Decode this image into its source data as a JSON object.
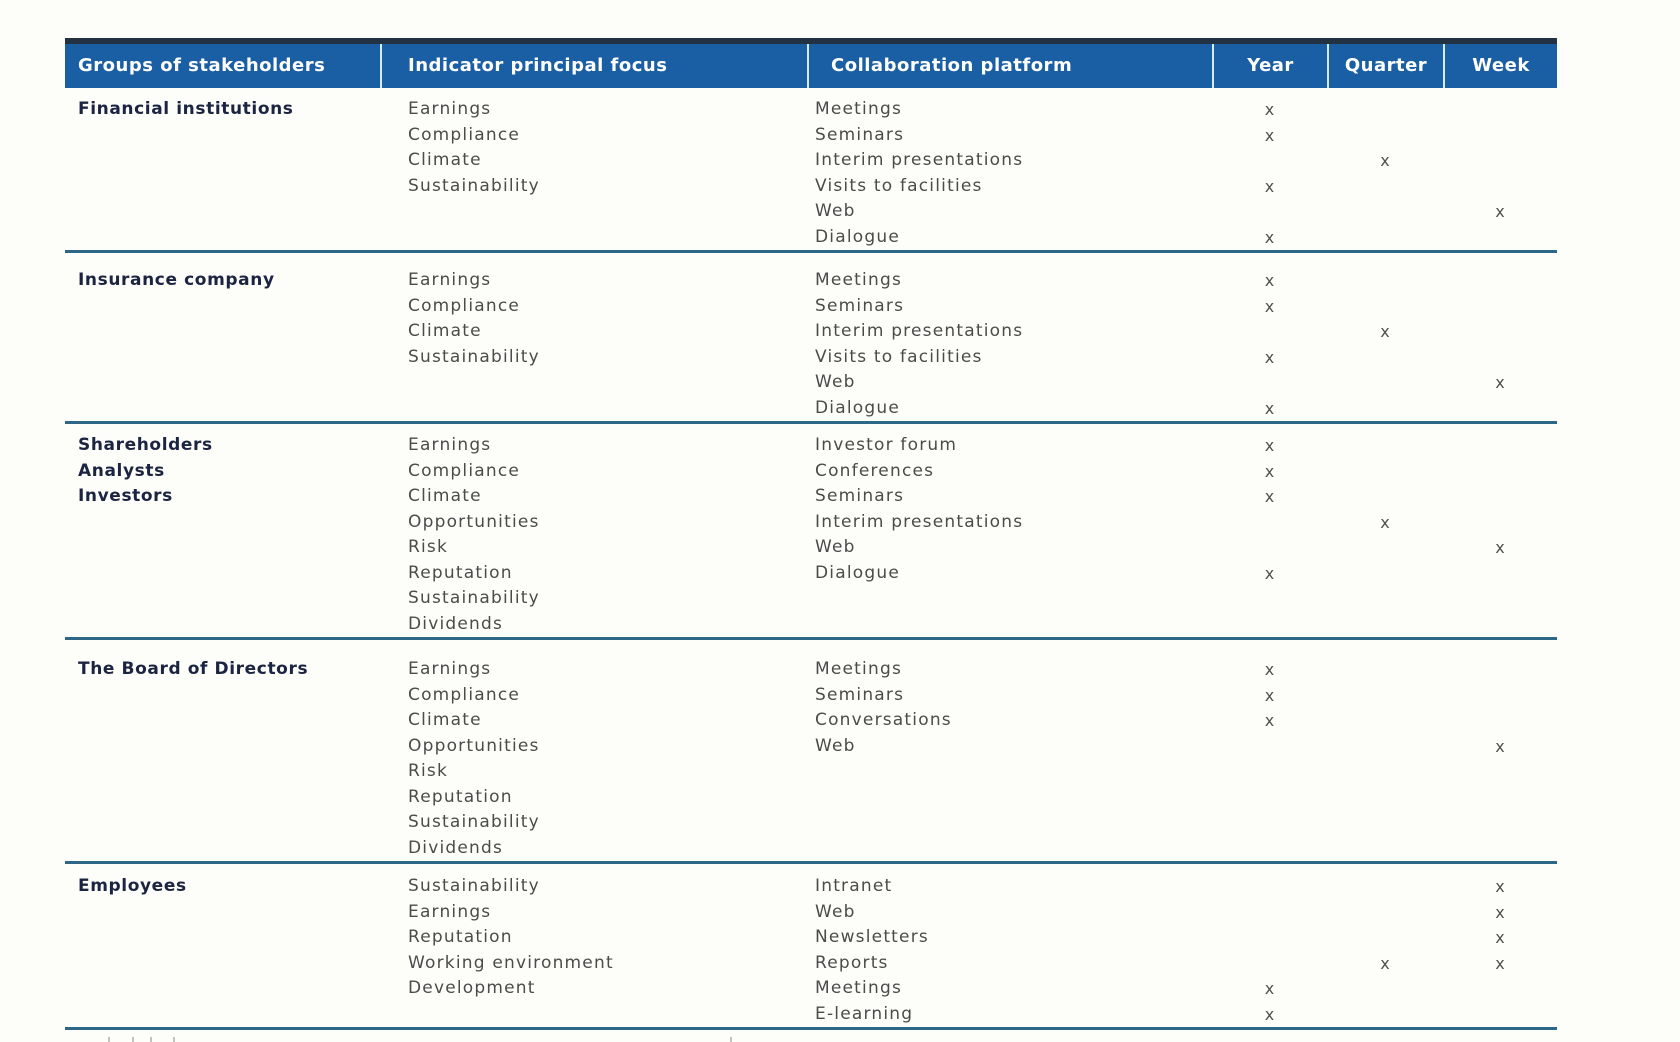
{
  "header": {
    "columns": [
      {
        "label": "Groups of stakeholders"
      },
      {
        "label": "Indicator principal focus"
      },
      {
        "label": "Collaboration platform"
      },
      {
        "label": "Year"
      },
      {
        "label": "Quarter"
      },
      {
        "label": "Week"
      }
    ]
  },
  "mark_symbol": "x",
  "groups": [
    {
      "name_lines": [
        "Financial institutions"
      ],
      "focus": [
        "Earnings",
        "Compliance",
        "Climate",
        "Sustainability"
      ],
      "platforms": [
        {
          "label": "Meetings",
          "year": "x",
          "quarter": "",
          "week": ""
        },
        {
          "label": "Seminars",
          "year": "x",
          "quarter": "",
          "week": ""
        },
        {
          "label": "Interim presentations",
          "year": "",
          "quarter": "x",
          "week": ""
        },
        {
          "label": "Visits to facilities",
          "year": "x",
          "quarter": "",
          "week": ""
        },
        {
          "label": "Web",
          "year": "",
          "quarter": "",
          "week": "x"
        },
        {
          "label": "Dialogue",
          "year": "x",
          "quarter": "",
          "week": ""
        }
      ]
    },
    {
      "name_lines": [
        "Insurance company"
      ],
      "focus": [
        "Earnings",
        "Compliance",
        "Climate",
        "Sustainability"
      ],
      "platforms": [
        {
          "label": "Meetings",
          "year": "x",
          "quarter": "",
          "week": ""
        },
        {
          "label": "Seminars",
          "year": "x",
          "quarter": "",
          "week": ""
        },
        {
          "label": "Interim presentations",
          "year": "",
          "quarter": "x",
          "week": ""
        },
        {
          "label": "Visits to facilities",
          "year": "x",
          "quarter": "",
          "week": ""
        },
        {
          "label": "Web",
          "year": "",
          "quarter": "",
          "week": "x"
        },
        {
          "label": "Dialogue",
          "year": "x",
          "quarter": "",
          "week": ""
        }
      ]
    },
    {
      "name_lines": [
        "Shareholders",
        "Analysts",
        "Investors"
      ],
      "focus": [
        "Earnings",
        "Compliance",
        "Climate",
        "Opportunities",
        "Risk",
        "Reputation",
        "Sustainability",
        "Dividends"
      ],
      "platforms": [
        {
          "label": "Investor forum",
          "year": "x",
          "quarter": "",
          "week": ""
        },
        {
          "label": "Conferences",
          "year": "x",
          "quarter": "",
          "week": ""
        },
        {
          "label": "Seminars",
          "year": "x",
          "quarter": "",
          "week": ""
        },
        {
          "label": "Interim presentations",
          "year": "",
          "quarter": "x",
          "week": ""
        },
        {
          "label": "Web",
          "year": "",
          "quarter": "",
          "week": "x"
        },
        {
          "label": "Dialogue",
          "year": "x",
          "quarter": "",
          "week": ""
        }
      ]
    },
    {
      "name_lines": [
        "The Board of Directors"
      ],
      "focus": [
        "Earnings",
        "Compliance",
        "Climate",
        "Opportunities",
        "Risk",
        "Reputation",
        "Sustainability",
        "Dividends"
      ],
      "platforms": [
        {
          "label": "Meetings",
          "year": "x",
          "quarter": "",
          "week": ""
        },
        {
          "label": "Seminars",
          "year": "x",
          "quarter": "",
          "week": ""
        },
        {
          "label": "Conversations",
          "year": "x",
          "quarter": "",
          "week": ""
        },
        {
          "label": "Web",
          "year": "",
          "quarter": "",
          "week": "x"
        }
      ]
    },
    {
      "name_lines": [
        "Employees"
      ],
      "focus": [
        "Sustainability",
        "Earnings",
        "Reputation",
        "Working environment",
        "Development"
      ],
      "platforms": [
        {
          "label": "Intranet",
          "year": "",
          "quarter": "",
          "week": "x"
        },
        {
          "label": "Web",
          "year": "",
          "quarter": "",
          "week": "x"
        },
        {
          "label": "Newsletters",
          "year": "",
          "quarter": "",
          "week": "x"
        },
        {
          "label": "Reports",
          "year": "",
          "quarter": "x",
          "week": "x"
        },
        {
          "label": "Meetings",
          "year": "x",
          "quarter": "",
          "week": ""
        },
        {
          "label": "E-learning",
          "year": "x",
          "quarter": "",
          "week": ""
        }
      ]
    }
  ],
  "colors": {
    "header_bg": "#1a5fa4",
    "header_top_strip": "#223243",
    "header_text": "#ffffff",
    "header_divider": "#d6ecf5",
    "group_separator": "#2e6887",
    "body_text": "#4b4b4b",
    "group_name_text": "#1b2440",
    "mark_text": "#515151",
    "page_bg": "#fdfdfa"
  }
}
